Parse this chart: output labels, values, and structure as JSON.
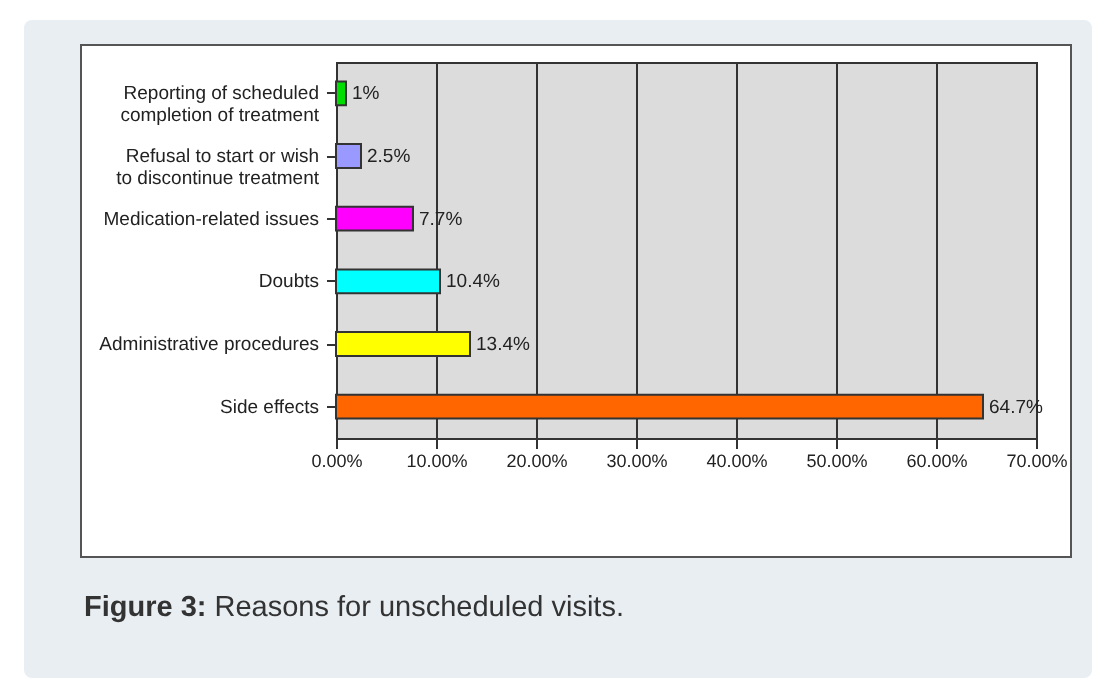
{
  "chart_data": {
    "type": "bar",
    "orientation": "horizontal",
    "categories": [
      "Reporting of scheduled completion of treatment",
      "Refusal to start or wish to discontinue treatment",
      "Medication-related issues",
      "Doubts",
      "Administrative procedures",
      "Side effects"
    ],
    "values": [
      1,
      2.5,
      7.7,
      10.4,
      13.4,
      64.7
    ],
    "colors": [
      "#00dd00",
      "#9999ff",
      "#ff00ff",
      "#00ffff",
      "#ffff00",
      "#ff6600"
    ],
    "value_labels": [
      "1%",
      "2.5%",
      "7.7%",
      "10.4%",
      "13.4%",
      "64.7%"
    ],
    "xlim": [
      0,
      70
    ],
    "xticks": [
      {
        "value": 0,
        "label": "0.00%"
      },
      {
        "value": 10,
        "label": "10.00%"
      },
      {
        "value": 20,
        "label": "20.00%"
      },
      {
        "value": 30,
        "label": "30.00%"
      },
      {
        "value": 40,
        "label": "40.00%"
      },
      {
        "value": 50,
        "label": "50.00%"
      },
      {
        "value": 60,
        "label": "60.00%"
      },
      {
        "value": 70,
        "label": "70.00%"
      }
    ],
    "grid": "x",
    "annotations": [
      "Figure 3: Reasons for unscheduled visits."
    ]
  }
}
